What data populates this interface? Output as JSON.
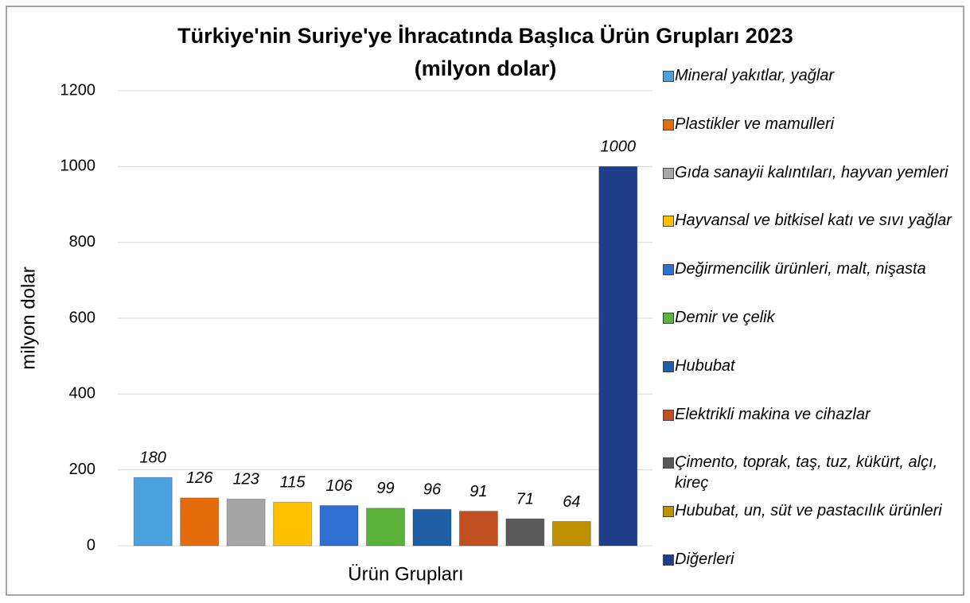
{
  "chart_data": {
    "type": "bar",
    "title": "Türkiye'nin Suriye'ye İhracatında Başlıca Ürün Grupları 2023",
    "subtitle": "(milyon dolar)",
    "y_label": "milyon dolar",
    "x_label": "Ürün Grupları",
    "categories": [
      "Mineral yakıtlar, yağlar",
      "Plastikler ve mamulleri",
      "Gıda sanayii kalıntıları, hayvan yemleri",
      "Hayvansal ve bitkisel katı ve sıvı yağlar",
      "Değirmencilik ürünleri, malt, nişasta",
      "Demir ve çelik",
      "Hububat",
      "Elektrikli makina ve cihazlar",
      "Çimento, toprak, taş, tuz, kükürt, alçı, kireç",
      "Hububat, un, süt ve pastacılık ürünleri",
      "Diğerleri"
    ],
    "values": [
      180,
      126,
      123,
      115,
      106,
      99,
      96,
      91,
      71,
      64,
      1000
    ],
    "colors": [
      "#4aa3df",
      "#e46c0a",
      "#a6a6a6",
      "#ffc000",
      "#2e6fd0",
      "#5bb33a",
      "#1f5fa6",
      "#c0501f",
      "#595959",
      "#bf9000",
      "#1f3f8a"
    ],
    "ylim": [
      0,
      1200
    ],
    "yticks": [
      0,
      200,
      400,
      600,
      800,
      1000,
      1200
    ],
    "grid": true
  }
}
